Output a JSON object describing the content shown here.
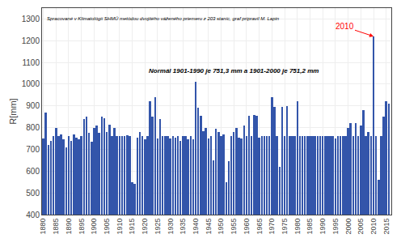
{
  "chart_data": {
    "type": "bar",
    "ylabel": "R[mm]",
    "x": [
      1880,
      1881,
      1882,
      1883,
      1884,
      1885,
      1886,
      1887,
      1888,
      1889,
      1890,
      1891,
      1892,
      1893,
      1894,
      1895,
      1896,
      1897,
      1898,
      1899,
      1900,
      1901,
      1902,
      1903,
      1904,
      1905,
      1906,
      1907,
      1908,
      1909,
      1910,
      1911,
      1912,
      1913,
      1914,
      1915,
      1916,
      1917,
      1918,
      1919,
      1920,
      1921,
      1922,
      1923,
      1924,
      1925,
      1926,
      1927,
      1928,
      1929,
      1930,
      1931,
      1932,
      1933,
      1934,
      1935,
      1936,
      1937,
      1938,
      1939,
      1940,
      1941,
      1942,
      1943,
      1944,
      1945,
      1946,
      1947,
      1948,
      1949,
      1950,
      1951,
      1952,
      1953,
      1954,
      1955,
      1956,
      1957,
      1958,
      1959,
      1960,
      1961,
      1962,
      1963,
      1964,
      1965,
      1966,
      1967,
      1968,
      1969,
      1970,
      1971,
      1972,
      1973,
      1974,
      1975,
      1976,
      1977,
      1978,
      1979,
      1980,
      1981,
      1982,
      1983,
      1984,
      1985,
      1986,
      1987,
      1988,
      1989,
      1990,
      1991,
      1992,
      1993,
      1994,
      1995,
      1996,
      1997,
      1998,
      1999,
      2000,
      2001,
      2002,
      2003,
      2004,
      2005,
      2006,
      2007,
      2008,
      2009,
      2010,
      2011,
      2012,
      2013,
      2014,
      2015,
      2016
    ],
    "values": [
      750,
      870,
      720,
      740,
      760,
      800,
      760,
      770,
      745,
      710,
      760,
      740,
      770,
      755,
      745,
      760,
      840,
      850,
      775,
      735,
      800,
      810,
      775,
      850,
      845,
      780,
      815,
      760,
      800,
      760,
      760,
      760,
      760,
      765,
      760,
      550,
      540,
      755,
      780,
      760,
      745,
      760,
      920,
      850,
      940,
      750,
      840,
      760,
      760,
      760,
      750,
      760,
      755,
      760,
      740,
      760,
      760,
      745,
      760,
      745,
      1010,
      890,
      855,
      785,
      800,
      750,
      760,
      650,
      795,
      780,
      760,
      770,
      550,
      645,
      760,
      780,
      800,
      755,
      750,
      810,
      760,
      855,
      760,
      860,
      855,
      755,
      760,
      760,
      760,
      760,
      940,
      895,
      760,
      620,
      895,
      760,
      900,
      760,
      760,
      760,
      920,
      760,
      760,
      760,
      760,
      760,
      760,
      760,
      760,
      760,
      760,
      760,
      760,
      760,
      760,
      750,
      760,
      760,
      760,
      760,
      800,
      820,
      760,
      820,
      760,
      810,
      880,
      760,
      780,
      760,
      1220,
      760,
      560,
      760,
      850,
      920,
      910
    ],
    "color": "#3355aa",
    "xlim": [
      1879.5,
      2017
    ],
    "ylim": [
      400,
      1350
    ],
    "xticks": [
      1880,
      1885,
      1890,
      1895,
      1900,
      1905,
      1910,
      1915,
      1920,
      1925,
      1930,
      1935,
      1940,
      1945,
      1950,
      1955,
      1960,
      1965,
      1970,
      1975,
      1980,
      1985,
      1990,
      1995,
      2000,
      2005,
      2010,
      2015
    ],
    "yticks": [
      400,
      500,
      600,
      700,
      800,
      900,
      1000,
      1100,
      1200,
      1300
    ],
    "grid": true,
    "annotations": [
      {
        "text": "Spracované v Klimatológii SHMÚ metódou dvojitého váženého priemeru z 203 staníc, graf pripravil M. Lapin"
      },
      {
        "text": "Normál 1901-1990 je 751,3 mm a 1901-2000 je 751,2 mm"
      },
      {
        "text": "2010",
        "x": 2010,
        "color": "red"
      }
    ]
  }
}
